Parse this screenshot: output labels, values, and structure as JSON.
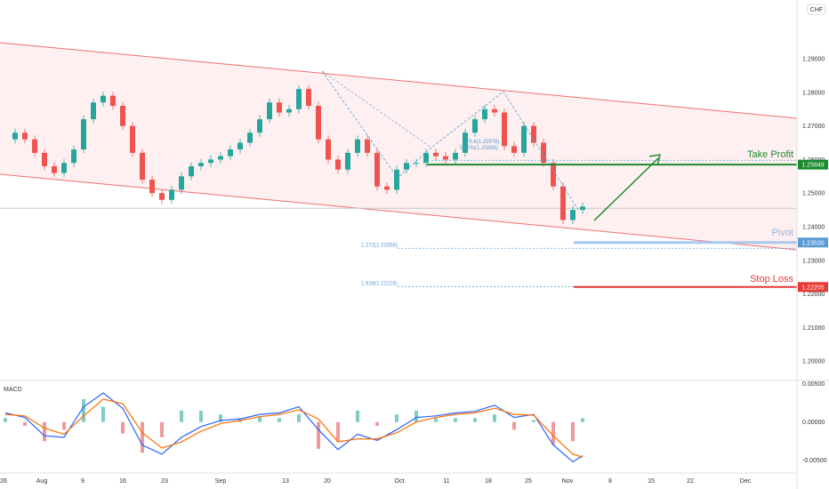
{
  "currency": "CHF",
  "chart_data": [
    {
      "type": "candlestick",
      "price_axis": {
        "ticks": [
          1.29,
          1.28,
          1.27,
          1.26,
          1.25,
          1.24,
          1.23,
          1.22,
          1.21,
          1.2
        ],
        "tick_labels": [
          "1.29000",
          "1.28000",
          "1.27000",
          "1.26000",
          "1.25000",
          "1.24000",
          "1.23000",
          "1.22000",
          "1.21000",
          "1.20000"
        ],
        "ylim": [
          1.195,
          1.3075
        ]
      },
      "time_axis": {
        "tick_labels": [
          "26",
          "Aug",
          "9",
          "16",
          "23",
          "Sep",
          "13",
          "20",
          "Oct",
          "11",
          "18",
          "25",
          "Nov",
          "8",
          "15",
          "22",
          "Dec"
        ]
      },
      "levels": {
        "take_profit": {
          "label": "Take Profit",
          "value": 1.25849,
          "value_label": "1.25849",
          "color": "#1b8a2e"
        },
        "pivot": {
          "label": "Pivot",
          "value": 1.2353,
          "value_label": "1.23530",
          "color": "#5b9bd5"
        },
        "stop_loss": {
          "label": "Stop Loss",
          "value": 1.22205,
          "value_label": "1.22205",
          "color": "#e53935"
        },
        "fib_1272": {
          "label": "1.272(1.23358)",
          "value": 1.23358
        },
        "fib_1618": {
          "label": "1.618(1.22218)",
          "value": 1.22218
        },
        "fib_a": {
          "label": "78.6(1.25978)",
          "value": 1.25978
        },
        "fib_b": {
          "label": "50.0%(1.25838)",
          "value": 1.25838
        }
      },
      "current_price": 1.2455,
      "close_path": [
        [
          0,
          1.266
        ],
        [
          1,
          1.268
        ],
        [
          2,
          1.266
        ],
        [
          3,
          1.262
        ],
        [
          4,
          1.258
        ],
        [
          5,
          1.256
        ],
        [
          6,
          1.259
        ],
        [
          7,
          1.263
        ],
        [
          8,
          1.272
        ],
        [
          9,
          1.277
        ],
        [
          10,
          1.279
        ],
        [
          11,
          1.276
        ],
        [
          12,
          1.27
        ],
        [
          13,
          1.262
        ],
        [
          14,
          1.254
        ],
        [
          15,
          1.25
        ],
        [
          16,
          1.248
        ],
        [
          17,
          1.251
        ],
        [
          18,
          1.255
        ],
        [
          19,
          1.258
        ],
        [
          20,
          1.259
        ],
        [
          21,
          1.26
        ],
        [
          22,
          1.261
        ],
        [
          23,
          1.263
        ],
        [
          24,
          1.265
        ],
        [
          25,
          1.268
        ],
        [
          26,
          1.272
        ],
        [
          27,
          1.277
        ],
        [
          28,
          1.274
        ],
        [
          29,
          1.275
        ],
        [
          30,
          1.281
        ],
        [
          31,
          1.276
        ],
        [
          32,
          1.266
        ],
        [
          33,
          1.26
        ],
        [
          34,
          1.257
        ],
        [
          35,
          1.262
        ],
        [
          36,
          1.266
        ],
        [
          37,
          1.262
        ],
        [
          38,
          1.252
        ],
        [
          39,
          1.251
        ],
        [
          40,
          1.257
        ],
        [
          41,
          1.259
        ],
        [
          42,
          1.259
        ],
        [
          43,
          1.262
        ],
        [
          44,
          1.261
        ],
        [
          45,
          1.26
        ],
        [
          46,
          1.262
        ],
        [
          47,
          1.268
        ],
        [
          48,
          1.272
        ],
        [
          49,
          1.275
        ],
        [
          50,
          1.274
        ],
        [
          51,
          1.264
        ],
        [
          52,
          1.262
        ],
        [
          53,
          1.27
        ],
        [
          54,
          1.265
        ],
        [
          55,
          1.259
        ],
        [
          56,
          1.252
        ],
        [
          57,
          1.242
        ],
        [
          58,
          1.245
        ],
        [
          59,
          1.246
        ]
      ],
      "macd": {
        "title": "MACD",
        "ticks": [
          0.005,
          0.0,
          -0.005
        ],
        "tick_labels": [
          "0.00500",
          "0.00000",
          "-0.00500"
        ],
        "ylim": [
          -0.0062,
          0.0052
        ],
        "macd_line": [
          [
            0,
            0.0012
          ],
          [
            2,
            0.0006
          ],
          [
            4,
            -0.0018
          ],
          [
            6,
            -0.002
          ],
          [
            8,
            0.002
          ],
          [
            10,
            0.0038
          ],
          [
            12,
            0.0018
          ],
          [
            14,
            -0.003
          ],
          [
            16,
            -0.0042
          ],
          [
            18,
            -0.002
          ],
          [
            20,
            -0.0006
          ],
          [
            22,
            0.0002
          ],
          [
            24,
            0.0004
          ],
          [
            26,
            0.001
          ],
          [
            28,
            0.0012
          ],
          [
            30,
            0.002
          ],
          [
            32,
            -0.001
          ],
          [
            34,
            -0.0036
          ],
          [
            36,
            -0.0016
          ],
          [
            38,
            -0.0024
          ],
          [
            40,
            -0.001
          ],
          [
            42,
            0.0006
          ],
          [
            44,
            0.0008
          ],
          [
            46,
            0.0012
          ],
          [
            48,
            0.0014
          ],
          [
            50,
            0.0022
          ],
          [
            52,
            0.0006
          ],
          [
            54,
            0.001
          ],
          [
            56,
            -0.003
          ],
          [
            58,
            -0.0052
          ],
          [
            59,
            -0.0044
          ]
        ],
        "signal_line": [
          [
            0,
            0.001
          ],
          [
            2,
            0.0008
          ],
          [
            4,
            -0.0008
          ],
          [
            6,
            -0.0016
          ],
          [
            8,
            0.0008
          ],
          [
            10,
            0.003
          ],
          [
            12,
            0.0024
          ],
          [
            14,
            -0.0014
          ],
          [
            16,
            -0.0034
          ],
          [
            18,
            -0.0026
          ],
          [
            20,
            -0.0012
          ],
          [
            22,
            -0.0002
          ],
          [
            24,
            0.0002
          ],
          [
            26,
            0.0007
          ],
          [
            28,
            0.001
          ],
          [
            30,
            0.0016
          ],
          [
            32,
            0.0004
          ],
          [
            34,
            -0.0026
          ],
          [
            36,
            -0.0022
          ],
          [
            38,
            -0.0022
          ],
          [
            40,
            -0.0014
          ],
          [
            42,
            0.0
          ],
          [
            44,
            0.0006
          ],
          [
            46,
            0.001
          ],
          [
            48,
            0.0012
          ],
          [
            50,
            0.0018
          ],
          [
            52,
            0.001
          ],
          [
            54,
            0.0009
          ],
          [
            56,
            -0.0018
          ],
          [
            58,
            -0.0042
          ],
          [
            59,
            -0.0046
          ]
        ]
      }
    }
  ]
}
